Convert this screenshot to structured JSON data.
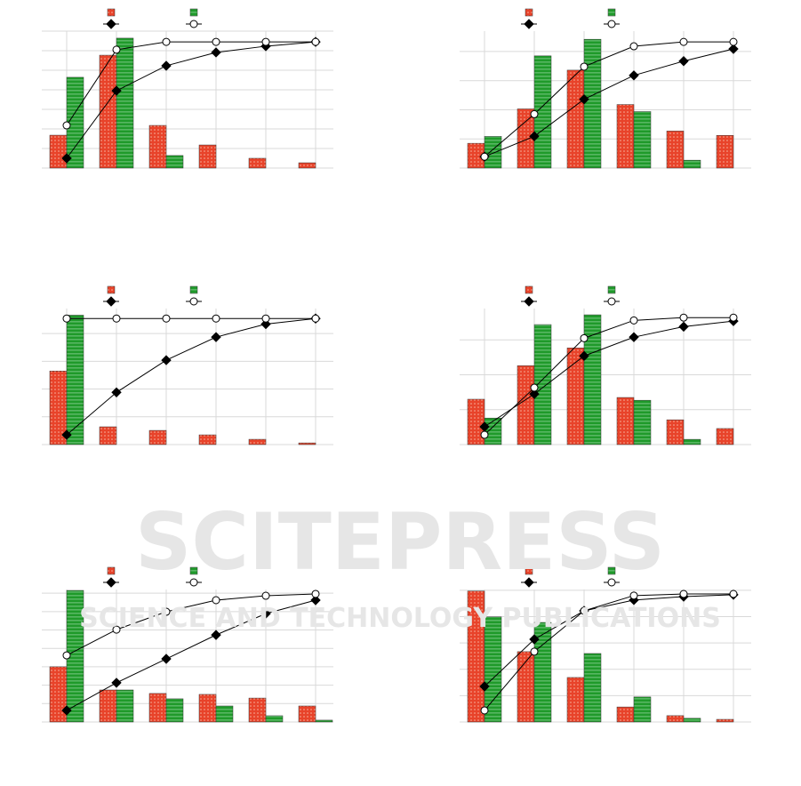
{
  "watermark": {
    "title": "SCITEPRESS",
    "subtitle": "SCIENCE AND TECHNOLOGY PUBLICATIONS"
  },
  "chart_data": [
    {
      "type": "bar",
      "categories": [
        null,
        null,
        null,
        null,
        null,
        null
      ],
      "ylim": [
        0,
        7
      ],
      "yticks": [
        0,
        1,
        2,
        3,
        4,
        5,
        6,
        7
      ],
      "grid": true,
      "series": [
        {
          "kind": "bar",
          "color": "#e8432a",
          "values": [
            1.68,
            5.77,
            2.18,
            1.18,
            0.5,
            0.27
          ]
        },
        {
          "kind": "bar",
          "color": "#1f9a2a",
          "values": [
            4.64,
            6.64,
            0.64,
            0,
            0,
            0
          ]
        },
        {
          "kind": "line",
          "marker": "diamond",
          "color": "#000000",
          "values": [
            0.5,
            3.95,
            5.23,
            5.91,
            6.23,
            6.45
          ]
        },
        {
          "kind": "line",
          "marker": "circle",
          "color": "#ffffff",
          "values": [
            2.18,
            6.05,
            6.45,
            6.45,
            6.45,
            6.45
          ]
        }
      ]
    },
    {
      "type": "bar",
      "categories": [
        null,
        null,
        null,
        null,
        null,
        null
      ],
      "ylim": [
        0,
        4.7
      ],
      "yticks": [
        0,
        1,
        2,
        3,
        4
      ],
      "grid": true,
      "series": [
        {
          "kind": "bar",
          "color": "#e8432a",
          "values": [
            0.85,
            2.03,
            3.36,
            2.18,
            1.27,
            1.12
          ]
        },
        {
          "kind": "bar",
          "color": "#1f9a2a",
          "values": [
            1.09,
            3.85,
            4.42,
            1.94,
            0.27,
            0
          ]
        },
        {
          "kind": "line",
          "marker": "diamond",
          "color": "#000000",
          "values": [
            0.39,
            1.09,
            2.36,
            3.18,
            3.67,
            4.09
          ]
        },
        {
          "kind": "line",
          "marker": "circle",
          "color": "#ffffff",
          "values": [
            0.39,
            1.85,
            3.48,
            4.18,
            4.33,
            4.33
          ]
        }
      ]
    },
    {
      "type": "bar",
      "categories": [
        null,
        null,
        null,
        null,
        null,
        null
      ],
      "ylim": [
        0,
        4.9
      ],
      "yticks": [
        0,
        1,
        2,
        3,
        4
      ],
      "grid": true,
      "series": [
        {
          "kind": "bar",
          "color": "#e8432a",
          "values": [
            2.65,
            0.64,
            0.51,
            0.35,
            0.19,
            0.06
          ]
        },
        {
          "kind": "bar",
          "color": "#1f9a2a",
          "values": [
            4.66,
            0,
            0,
            0,
            0,
            0
          ]
        },
        {
          "kind": "line",
          "marker": "diamond",
          "color": "#000000",
          "values": [
            0.35,
            1.88,
            3.04,
            3.87,
            4.34,
            4.54
          ]
        },
        {
          "kind": "line",
          "marker": "circle",
          "color": "#ffffff",
          "values": [
            4.54,
            4.54,
            4.54,
            4.54,
            4.54,
            4.54
          ]
        }
      ]
    },
    {
      "type": "bar",
      "categories": [
        null,
        null,
        null,
        null,
        null,
        null
      ],
      "ylim": [
        0,
        3.9
      ],
      "yticks": [
        0,
        1,
        2,
        3
      ],
      "grid": true,
      "series": [
        {
          "kind": "bar",
          "color": "#e8432a",
          "values": [
            1.3,
            2.26,
            2.77,
            1.35,
            0.71,
            0.46
          ]
        },
        {
          "kind": "bar",
          "color": "#1f9a2a",
          "values": [
            0.76,
            3.44,
            3.72,
            1.27,
            0.15,
            0
          ]
        },
        {
          "kind": "line",
          "marker": "diamond",
          "color": "#000000",
          "values": [
            0.51,
            1.45,
            2.54,
            3.08,
            3.38,
            3.54
          ]
        },
        {
          "kind": "line",
          "marker": "circle",
          "color": "#ffffff",
          "values": [
            0.28,
            1.63,
            3.05,
            3.56,
            3.64,
            3.64
          ]
        }
      ]
    },
    {
      "type": "bar",
      "categories": [
        null,
        null,
        null,
        null,
        null,
        null
      ],
      "ylim": [
        0,
        7.2
      ],
      "yticks": [
        0,
        1,
        2,
        3,
        4,
        5,
        6,
        7
      ],
      "grid": true,
      "series": [
        {
          "kind": "bar",
          "color": "#e8432a",
          "values": [
            3.0,
            1.74,
            1.55,
            1.5,
            1.3,
            0.87
          ]
        },
        {
          "kind": "bar",
          "color": "#1f9a2a",
          "values": [
            7.15,
            1.74,
            1.26,
            0.87,
            0.34,
            0.1
          ]
        },
        {
          "kind": "line",
          "marker": "diamond",
          "color": "#000000",
          "values": [
            0.63,
            2.13,
            3.43,
            4.73,
            5.89,
            6.62
          ]
        },
        {
          "kind": "line",
          "marker": "circle",
          "color": "#ffffff",
          "values": [
            3.62,
            5.02,
            5.99,
            6.62,
            6.86,
            6.96
          ]
        }
      ]
    },
    {
      "type": "bar",
      "categories": [
        null,
        null,
        null,
        null,
        null,
        null
      ],
      "ylim": [
        0,
        5.03
      ],
      "yticks": [
        0,
        1,
        2,
        3,
        4,
        5
      ],
      "grid": true,
      "series": [
        {
          "kind": "bar",
          "color": "#e8432a",
          "values": [
            4.97,
            2.67,
            1.69,
            0.57,
            0.24,
            0.1
          ]
        },
        {
          "kind": "bar",
          "color": "#1f9a2a",
          "values": [
            3.99,
            3.78,
            2.6,
            0.95,
            0.14,
            0
          ]
        },
        {
          "kind": "line",
          "marker": "diamond",
          "color": "#000000",
          "values": [
            1.35,
            3.14,
            4.22,
            4.63,
            4.76,
            4.83
          ]
        },
        {
          "kind": "line",
          "marker": "circle",
          "color": "#ffffff",
          "values": [
            0.44,
            2.67,
            4.22,
            4.8,
            4.86,
            4.86
          ]
        }
      ]
    }
  ]
}
